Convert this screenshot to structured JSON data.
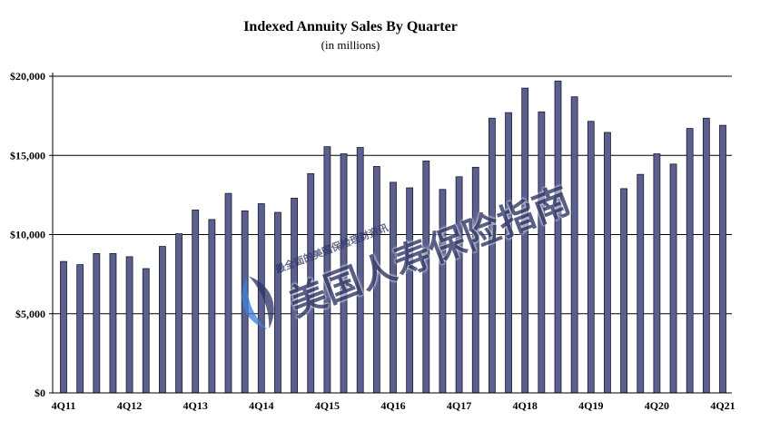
{
  "chart_data": {
    "type": "bar",
    "title": "Indexed Annuity Sales By Quarter",
    "subtitle": "(in millions)",
    "xlabel": "",
    "ylabel": "",
    "ylim": [
      0,
      20000
    ],
    "yticks": [
      "$0",
      "$5,000",
      "$10,000",
      "$15,000",
      "$20,000"
    ],
    "grid": true,
    "categories": [
      "4Q11",
      "1Q12",
      "2Q12",
      "3Q12",
      "4Q12",
      "1Q13",
      "2Q13",
      "3Q13",
      "4Q13",
      "1Q14",
      "2Q14",
      "3Q14",
      "4Q14",
      "1Q15",
      "2Q15",
      "3Q15",
      "4Q15",
      "1Q16",
      "2Q16",
      "3Q16",
      "4Q16",
      "1Q17",
      "2Q17",
      "3Q17",
      "4Q17",
      "1Q18",
      "2Q18",
      "3Q18",
      "4Q18",
      "1Q19",
      "2Q19",
      "3Q19",
      "4Q19",
      "1Q20",
      "2Q20",
      "3Q20",
      "4Q20",
      "1Q21",
      "2Q21",
      "3Q21",
      "4Q21"
    ],
    "x_tick_labels": [
      "4Q11",
      "4Q12",
      "4Q13",
      "4Q14",
      "4Q15",
      "4Q16",
      "4Q17",
      "4Q18",
      "4Q19",
      "4Q20",
      "4Q21"
    ],
    "values": [
      8300,
      8100,
      8800,
      8800,
      8600,
      7850,
      9250,
      10050,
      11550,
      10950,
      12600,
      11500,
      11950,
      11400,
      12300,
      13850,
      15550,
      15100,
      15500,
      14300,
      13300,
      12950,
      14650,
      12850,
      13650,
      14250,
      17350,
      17700,
      19250,
      17750,
      19700,
      18700,
      17150,
      16450,
      12900,
      13800,
      15100,
      14450,
      16700,
      17350,
      16900
    ],
    "bar_color": "#5b5f8e"
  },
  "watermark": {
    "main_text": "美国人寿保险指南",
    "small_text": "最全面的美国保险理财资讯"
  }
}
